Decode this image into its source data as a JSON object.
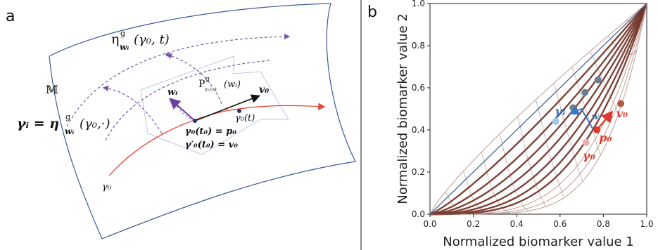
{
  "panel_a": {
    "letter": "a",
    "eta_label_main": "η",
    "eta_label_sup": "g",
    "eta_label_sub": "wᵢ",
    "eta_label_args": "(γ₀, t)",
    "manifold_label": "𝕄",
    "gamma_i_lhs": "γᵢ = η",
    "gamma_i_sup": "g",
    "gamma_i_sub": "wᵢ",
    "gamma_i_args": "(γ₀,·)",
    "parallel_transport_main": "P",
    "parallel_transport_sup": "g",
    "parallel_transport_sub": "γ₀,t₀,t",
    "parallel_transport_arg": "(wᵢ)",
    "w_label": "wᵢ",
    "v0_label": "v₀",
    "gamma0_t_label": "γ₀(t)",
    "eq1": "γ₀(t₀) = p₀",
    "eq2": "γ′₀(t₀) = v₀",
    "gamma0_label": "γ₀",
    "colors": {
      "geodesic": "#e8463a",
      "w_vector": "#6a3fa0",
      "manifold": "#3c5a9a",
      "dashed": "#7a5aa8"
    }
  },
  "panel_b": {
    "letter": "b",
    "xlabel": "Normalized biomarker value 1",
    "ylabel": "Normalized biomarker value 2",
    "annotations": {
      "gamma_i": "γᵢ",
      "w_i": "wᵢ",
      "p0": "p₀",
      "v0": "v₀",
      "gamma0": "γ₀"
    },
    "colors": {
      "gamma_i": "#3a78c2",
      "red": "#e03a2e",
      "curves": "#7a3a2a"
    }
  },
  "chart_data": {
    "type": "line",
    "title": "",
    "xlabel": "Normalized biomarker value 1",
    "ylabel": "Normalized biomarker value 2",
    "xlim": [
      0.0,
      1.0
    ],
    "ylim": [
      0.0,
      1.0
    ],
    "xticks": [
      "0.0",
      "0.2",
      "0.4",
      "0.6",
      "0.8",
      "1.0"
    ],
    "yticks": [
      "0.0",
      "0.2",
      "0.4",
      "0.6",
      "0.8",
      "1.0"
    ],
    "grid": true,
    "curve_exponents": [
      0.85,
      1.0,
      1.2,
      1.45,
      1.7,
      2.0,
      2.35,
      2.75,
      3.2,
      3.8,
      4.5,
      5.3
    ],
    "points": [
      {
        "x": 0.58,
        "y": 0.44,
        "color": "#9ec8ee"
      },
      {
        "x": 0.66,
        "y": 0.505,
        "color": "#6a7f94"
      },
      {
        "x": 0.715,
        "y": 0.578,
        "color": "#6a7f94"
      },
      {
        "x": 0.775,
        "y": 0.638,
        "color": "#6a7f94"
      },
      {
        "x": 0.72,
        "y": 0.34,
        "color": "#e8b0a8"
      },
      {
        "x": 0.77,
        "y": 0.4,
        "color": "#e03a2e"
      },
      {
        "x": 0.825,
        "y": 0.465,
        "color": "#c24a36"
      },
      {
        "x": 0.88,
        "y": 0.525,
        "color": "#b45a40"
      }
    ],
    "gamma_i_line": {
      "from": [
        0.0,
        0.0
      ],
      "to": [
        1.0,
        1.0
      ],
      "color": "#4a6a9a"
    }
  }
}
